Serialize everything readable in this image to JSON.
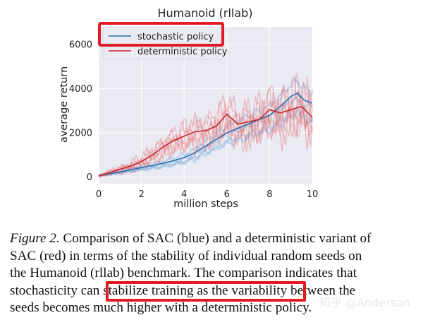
{
  "chart_data": {
    "type": "line",
    "title": "Humanoid (rllab)",
    "xlabel": "million steps",
    "ylabel": "average return",
    "xlim": [
      0,
      10
    ],
    "ylim": [
      -300,
      6800
    ],
    "xticks": [
      "0",
      "2",
      "4",
      "6",
      "8",
      "10"
    ],
    "yticks": [
      "0",
      "2000",
      "4000",
      "6000"
    ],
    "grid": true,
    "legend_position": "top-left",
    "series": [
      {
        "name": "stochastic policy",
        "color": "#2a6fb5",
        "x": [
          0,
          0.5,
          1,
          1.5,
          2,
          2.5,
          3,
          3.5,
          4,
          4.5,
          5,
          5.5,
          6,
          6.5,
          7,
          7.5,
          8,
          8.5,
          9,
          9.3,
          9.6,
          9.8,
          10
        ],
        "values": [
          60,
          150,
          230,
          330,
          430,
          520,
          620,
          740,
          880,
          1100,
          1400,
          1700,
          2000,
          2200,
          2400,
          2600,
          2800,
          3200,
          3650,
          3800,
          3500,
          3400,
          3350
        ]
      },
      {
        "name": "deterministic policy",
        "color": "#c3272b",
        "x": [
          0,
          0.5,
          1,
          1.5,
          2,
          2.5,
          3,
          3.5,
          4,
          4.5,
          5,
          5.5,
          6,
          6.5,
          7,
          7.5,
          8,
          8.5,
          9,
          9.5,
          10
        ],
        "values": [
          50,
          200,
          350,
          500,
          700,
          1000,
          1350,
          1650,
          1850,
          2050,
          2100,
          2300,
          2850,
          2400,
          2500,
          2600,
          3050,
          2900,
          3050,
          3200,
          2700
        ]
      }
    ]
  },
  "caption": {
    "label": "Figure 2.",
    "text": " Comparison of SAC (blue) and a deterministic variant of SAC (red) in terms of the stability of individual random seeds on the Humanoid (rllab) benchmark. The comparison indicates that stochasticity can stabilize training as the variability between the seeds becomes much higher with a deterministic policy."
  },
  "watermark": "知乎 @Anderson",
  "colors": {
    "highlight": "#e01b24",
    "seed_red": "#e8686b",
    "seed_blue": "#6fa8dc"
  }
}
